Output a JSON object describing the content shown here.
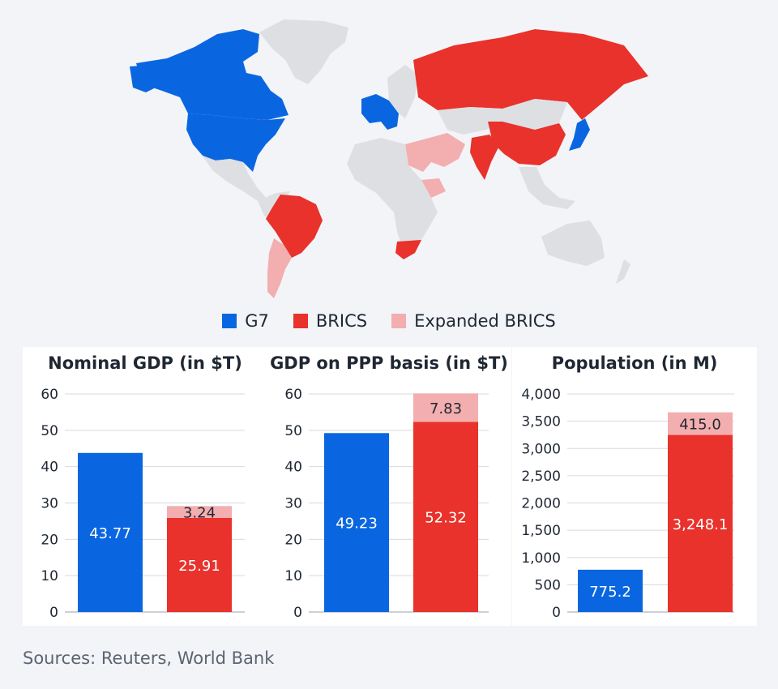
{
  "colors": {
    "g7": "#0a66e0",
    "brics": "#e8322b",
    "expanded": "#f3aeb0",
    "land": "#dedfe2"
  },
  "legend": [
    {
      "label": "G7",
      "color": "#0a66e0"
    },
    {
      "label": "BRICS",
      "color": "#e8322b"
    },
    {
      "label": "Expanded BRICS",
      "color": "#f3aeb0"
    }
  ],
  "chart_data": [
    {
      "type": "bar",
      "title": "Nominal GDP (in $T)",
      "ylim": [
        0,
        60
      ],
      "yticks": [
        "0",
        "10",
        "20",
        "30",
        "40",
        "50",
        "60"
      ],
      "yvalues": [
        0,
        10,
        20,
        30,
        40,
        50,
        60
      ],
      "categories": [
        "G7",
        "BRICS"
      ],
      "series": [
        {
          "name": "G7",
          "values": [
            43.77,
            0
          ],
          "labels": [
            "43.77",
            ""
          ]
        },
        {
          "name": "BRICS",
          "values": [
            0,
            25.91
          ],
          "labels": [
            "",
            "25.91"
          ]
        },
        {
          "name": "Expanded BRICS",
          "values": [
            0,
            3.24
          ],
          "labels": [
            "",
            "3.24"
          ]
        }
      ],
      "grid": true
    },
    {
      "type": "bar",
      "title": "GDP on PPP basis (in $T)",
      "ylim": [
        0,
        60
      ],
      "yticks": [
        "0",
        "10",
        "20",
        "30",
        "40",
        "50",
        "60"
      ],
      "yvalues": [
        0,
        10,
        20,
        30,
        40,
        50,
        60
      ],
      "categories": [
        "G7",
        "BRICS"
      ],
      "series": [
        {
          "name": "G7",
          "values": [
            49.23,
            0
          ],
          "labels": [
            "49.23",
            ""
          ]
        },
        {
          "name": "BRICS",
          "values": [
            0,
            52.32
          ],
          "labels": [
            "",
            "52.32"
          ]
        },
        {
          "name": "Expanded BRICS",
          "values": [
            0,
            7.83
          ],
          "labels": [
            "",
            "7.83"
          ]
        }
      ],
      "grid": true
    },
    {
      "type": "bar",
      "title": "Population (in M)",
      "ylim": [
        0,
        4000
      ],
      "yticks": [
        "0",
        "500",
        "1,000",
        "1,500",
        "2,000",
        "2,500",
        "3,000",
        "3,500",
        "4,000"
      ],
      "yvalues": [
        0,
        500,
        1000,
        1500,
        2000,
        2500,
        3000,
        3500,
        4000
      ],
      "categories": [
        "G7",
        "BRICS"
      ],
      "series": [
        {
          "name": "G7",
          "values": [
            775.2,
            0
          ],
          "labels": [
            "775.2",
            ""
          ]
        },
        {
          "name": "BRICS",
          "values": [
            0,
            3248.1
          ],
          "labels": [
            "",
            "3,248.1"
          ]
        },
        {
          "name": "Expanded BRICS",
          "values": [
            0,
            415.0
          ],
          "labels": [
            "",
            "415.0"
          ]
        }
      ],
      "grid": true
    }
  ],
  "source": "Sources: Reuters, World Bank"
}
